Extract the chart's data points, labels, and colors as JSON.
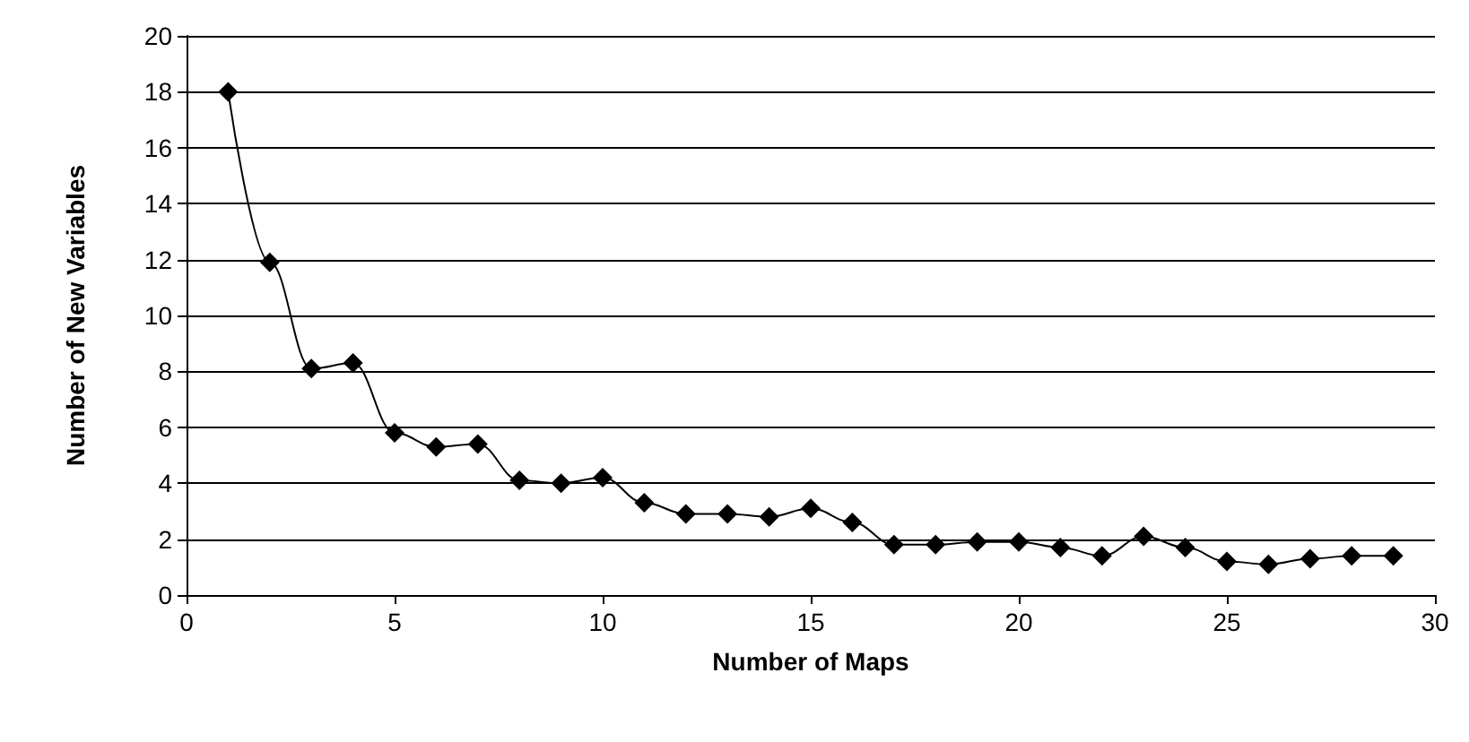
{
  "chart_data": {
    "type": "line",
    "xlabel": "Number of Maps",
    "ylabel": "Number of New Variables",
    "x": [
      1,
      2,
      3,
      4,
      5,
      6,
      7,
      8,
      9,
      10,
      11,
      12,
      13,
      14,
      15,
      16,
      17,
      18,
      19,
      20,
      21,
      22,
      23,
      24,
      25,
      26,
      27,
      28,
      29
    ],
    "series": [
      {
        "color": "#000000",
        "values": [
          18.0,
          11.9,
          8.1,
          8.3,
          5.8,
          5.3,
          5.4,
          4.1,
          4.0,
          4.2,
          3.3,
          2.9,
          2.9,
          2.8,
          3.1,
          2.6,
          1.8,
          1.8,
          1.9,
          1.9,
          1.7,
          1.4,
          2.1,
          1.7,
          1.2,
          1.1,
          1.3,
          1.4,
          1.4
        ]
      }
    ],
    "xlim": [
      0,
      30
    ],
    "xticks": [
      0,
      5,
      10,
      15,
      20,
      25,
      30
    ],
    "ylim": [
      0,
      20
    ],
    "yticks": [
      0,
      2,
      4,
      6,
      8,
      10,
      12,
      14,
      16,
      18,
      20
    ],
    "grid": "y",
    "marker": "diamond",
    "line_style": "solid"
  }
}
